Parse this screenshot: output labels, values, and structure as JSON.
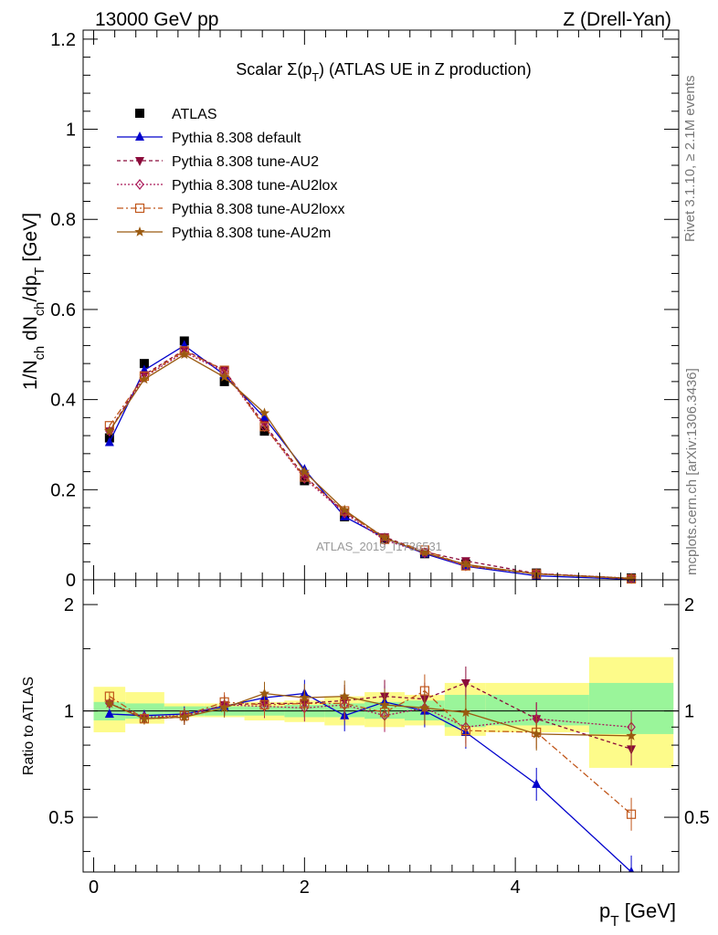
{
  "header": {
    "left": "13000 GeV pp",
    "right": "Z (Drell-Yan)"
  },
  "side_texts": {
    "rivet": "Rivet 3.1.10, ≥ 2.1M events",
    "mcplots": "mcplots.cern.ch [arXiv:1306.3436]"
  },
  "watermark": "ATLAS_2019_I1736531",
  "colors": {
    "atlas": "#000000",
    "default": "#0000cc",
    "au2": "#8b0a3a",
    "au2lox": "#aa1a5a",
    "au2loxx": "#c0561a",
    "au2m": "#9a5a10",
    "band_green": "#9af59a",
    "band_yellow": "#fdfb8a"
  },
  "chart_data": [
    {
      "type": "line",
      "title": "Scalar Σ(p_T) (ATLAS UE in Z production)",
      "xlabel": "p_T [GeV]",
      "ylabel": "1/N_ch dN_ch/dp_T [GeV]",
      "xlim": [
        -0.1,
        5.55
      ],
      "ylim": [
        0,
        1.22
      ],
      "yticks": [
        "0",
        "0.2",
        "0.4",
        "0.6",
        "0.8",
        "1",
        "1.2"
      ],
      "legend_position": "top-left",
      "x": [
        0.15,
        0.48,
        0.86,
        1.24,
        1.62,
        2.0,
        2.38,
        2.76,
        3.14,
        3.53,
        4.2,
        5.1
      ],
      "series": [
        {
          "name": "ATLAS",
          "values": [
            0.315,
            0.48,
            0.53,
            0.44,
            0.33,
            0.22,
            0.14,
            0.09,
            0.058,
            0.035,
            0.015,
            0.004
          ]
        },
        {
          "name": "Pythia 8.308 default",
          "values": [
            0.305,
            0.465,
            0.52,
            0.455,
            0.36,
            0.245,
            0.14,
            0.093,
            0.058,
            0.03,
            0.009,
            0.001
          ]
        },
        {
          "name": "Pythia 8.308 tune-AU2",
          "values": [
            0.33,
            0.455,
            0.51,
            0.465,
            0.345,
            0.23,
            0.15,
            0.095,
            0.062,
            0.042,
            0.014,
            0.003
          ]
        },
        {
          "name": "Pythia 8.308 tune-AU2lox",
          "values": [
            0.33,
            0.45,
            0.505,
            0.462,
            0.34,
            0.225,
            0.148,
            0.088,
            0.06,
            0.031,
            0.014,
            0.0035
          ]
        },
        {
          "name": "Pythia 8.308 tune-AU2loxx",
          "values": [
            0.342,
            0.452,
            0.508,
            0.465,
            0.34,
            0.228,
            0.153,
            0.09,
            0.066,
            0.031,
            0.013,
            0.002
          ]
        },
        {
          "name": "Pythia 8.308 tune-AU2m",
          "values": [
            0.33,
            0.445,
            0.5,
            0.45,
            0.37,
            0.24,
            0.155,
            0.093,
            0.06,
            0.034,
            0.013,
            0.0033
          ]
        }
      ]
    },
    {
      "type": "line",
      "xlabel": "p_T [GeV]",
      "ylabel": "Ratio to ATLAS",
      "xlim": [
        -0.1,
        5.55
      ],
      "ylim": [
        0.35,
        2.35
      ],
      "log_y": true,
      "yticks": [
        "0.5",
        "1",
        "2"
      ],
      "xticks": [
        "0",
        "2",
        "4"
      ],
      "x": [
        0.15,
        0.48,
        0.86,
        1.24,
        1.62,
        2.0,
        2.38,
        2.76,
        3.14,
        3.53,
        4.2,
        5.1
      ],
      "bins": [
        [
          0.0,
          0.3
        ],
        [
          0.3,
          0.67
        ],
        [
          0.67,
          1.05
        ],
        [
          1.05,
          1.43
        ],
        [
          1.43,
          1.81
        ],
        [
          1.81,
          2.19
        ],
        [
          2.19,
          2.57
        ],
        [
          2.57,
          2.95
        ],
        [
          2.95,
          3.33
        ],
        [
          3.33,
          3.72
        ],
        [
          3.72,
          4.7
        ],
        [
          4.7,
          5.5
        ]
      ],
      "band_green": [
        [
          0.94,
          1.06
        ],
        [
          0.95,
          1.05
        ],
        [
          0.97,
          1.03
        ],
        [
          0.97,
          1.03
        ],
        [
          0.97,
          1.03
        ],
        [
          0.96,
          1.04
        ],
        [
          0.96,
          1.05
        ],
        [
          0.95,
          1.06
        ],
        [
          0.94,
          1.07
        ],
        [
          0.9,
          1.11
        ],
        [
          0.91,
          1.11
        ],
        [
          0.86,
          1.2
        ]
      ],
      "band_yellow": [
        [
          0.87,
          1.17
        ],
        [
          0.92,
          1.13
        ],
        [
          0.96,
          1.05
        ],
        [
          0.96,
          1.05
        ],
        [
          0.94,
          1.06
        ],
        [
          0.93,
          1.07
        ],
        [
          0.91,
          1.1
        ],
        [
          0.9,
          1.13
        ],
        [
          0.91,
          1.11
        ],
        [
          0.85,
          1.2
        ],
        [
          0.87,
          1.2
        ],
        [
          0.69,
          1.42
        ]
      ],
      "series": [
        {
          "name": "Pythia 8.308 default",
          "values": [
            0.98,
            0.97,
            0.98,
            1.03,
            1.09,
            1.12,
            0.97,
            1.06,
            1.0,
            0.87,
            0.62,
            0.35
          ]
        },
        {
          "name": "Pythia 8.308 tune-AU2",
          "values": [
            1.05,
            0.95,
            0.96,
            1.04,
            1.05,
            1.05,
            1.07,
            1.1,
            1.08,
            1.2,
            0.95,
            0.78
          ]
        },
        {
          "name": "Pythia 8.308 tune-AU2lox",
          "values": [
            1.05,
            0.96,
            0.97,
            1.04,
            1.03,
            1.02,
            1.04,
            0.97,
            1.02,
            0.9,
            0.95,
            0.9
          ]
        },
        {
          "name": "Pythia 8.308 tune-AU2loxx",
          "values": [
            1.1,
            0.95,
            0.97,
            1.06,
            1.04,
            1.05,
            1.05,
            0.99,
            1.14,
            0.88,
            0.87,
            0.51
          ]
        },
        {
          "name": "Pythia 8.308 tune-AU2m",
          "values": [
            1.05,
            0.95,
            0.96,
            1.02,
            1.12,
            1.09,
            1.1,
            1.04,
            1.02,
            0.99,
            0.86,
            0.85
          ]
        }
      ]
    }
  ]
}
